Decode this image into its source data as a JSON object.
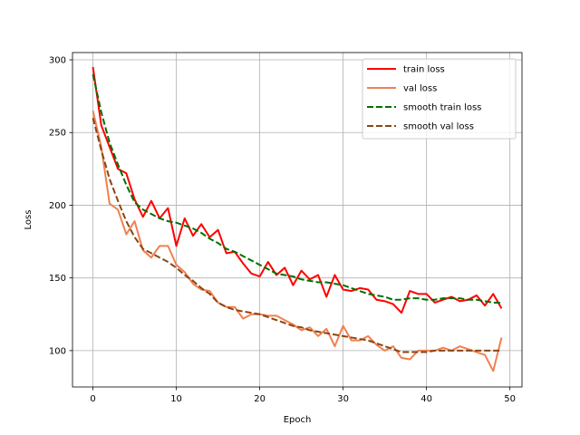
{
  "chart_data": {
    "type": "line",
    "title": "",
    "xlabel": "Epoch",
    "ylabel": "Loss",
    "xlim": [
      -2.45,
      51.45
    ],
    "ylim": [
      75,
      305
    ],
    "xticks": [
      0,
      10,
      20,
      30,
      40,
      50
    ],
    "yticks": [
      100,
      150,
      200,
      250,
      300
    ],
    "grid": true,
    "legend_position": "top-right",
    "x": [
      0,
      1,
      2,
      3,
      4,
      5,
      6,
      7,
      8,
      9,
      10,
      11,
      12,
      13,
      14,
      15,
      16,
      17,
      18,
      19,
      20,
      21,
      22,
      23,
      24,
      25,
      26,
      27,
      28,
      29,
      30,
      31,
      32,
      33,
      34,
      35,
      36,
      37,
      38,
      39,
      40,
      41,
      42,
      43,
      44,
      45,
      46,
      47,
      48,
      49
    ],
    "series": [
      {
        "name": "train loss",
        "color": "#ff0000",
        "style": "solid",
        "values": [
          295,
          255,
          240,
          225,
          222,
          204,
          192,
          203,
          191,
          198,
          172,
          191,
          179,
          187,
          178,
          183,
          167,
          168,
          160,
          153,
          151,
          161,
          152,
          157,
          145,
          155,
          149,
          152,
          137,
          152,
          142,
          141,
          143,
          142,
          135,
          134,
          132,
          126,
          141,
          139,
          139,
          133,
          135,
          137,
          134,
          135,
          138,
          131,
          139,
          129
        ]
      },
      {
        "name": "val loss",
        "color": "#f08050",
        "style": "solid",
        "values": [
          265,
          240,
          201,
          197,
          180,
          189,
          169,
          164,
          172,
          172,
          159,
          154,
          146,
          142,
          141,
          133,
          130,
          130,
          122,
          125,
          125,
          124,
          124,
          121,
          118,
          114,
          116,
          110,
          115,
          103,
          117,
          107,
          107,
          110,
          104,
          100,
          103,
          95,
          94,
          100,
          100,
          100,
          102,
          100,
          103,
          101,
          99,
          97,
          86,
          109
        ]
      },
      {
        "name": "smooth train loss",
        "color": "#007000",
        "style": "dashed",
        "values": [
          290,
          264,
          243,
          228,
          214,
          202,
          197,
          194,
          191,
          189,
          188,
          186,
          184,
          181,
          177,
          174,
          170,
          168,
          165,
          162,
          159,
          156,
          153,
          152,
          151,
          149,
          148,
          147,
          147,
          146,
          145,
          143,
          141,
          139,
          138,
          137,
          135,
          135,
          136,
          136,
          135,
          135,
          136,
          136,
          136,
          135,
          135,
          134,
          133,
          133
        ]
      },
      {
        "name": "smooth val loss",
        "color": "#8b4513",
        "style": "dashed",
        "values": [
          260,
          238,
          218,
          203,
          189,
          178,
          170,
          167,
          164,
          161,
          157,
          152,
          148,
          143,
          139,
          133,
          130,
          128,
          127,
          126,
          125,
          123,
          121,
          119,
          117,
          116,
          114,
          113,
          112,
          111,
          110,
          109,
          108,
          107,
          105,
          103,
          101,
          99,
          99,
          99,
          99,
          100,
          100,
          100,
          100,
          100,
          100,
          100,
          100,
          100
        ]
      }
    ]
  }
}
